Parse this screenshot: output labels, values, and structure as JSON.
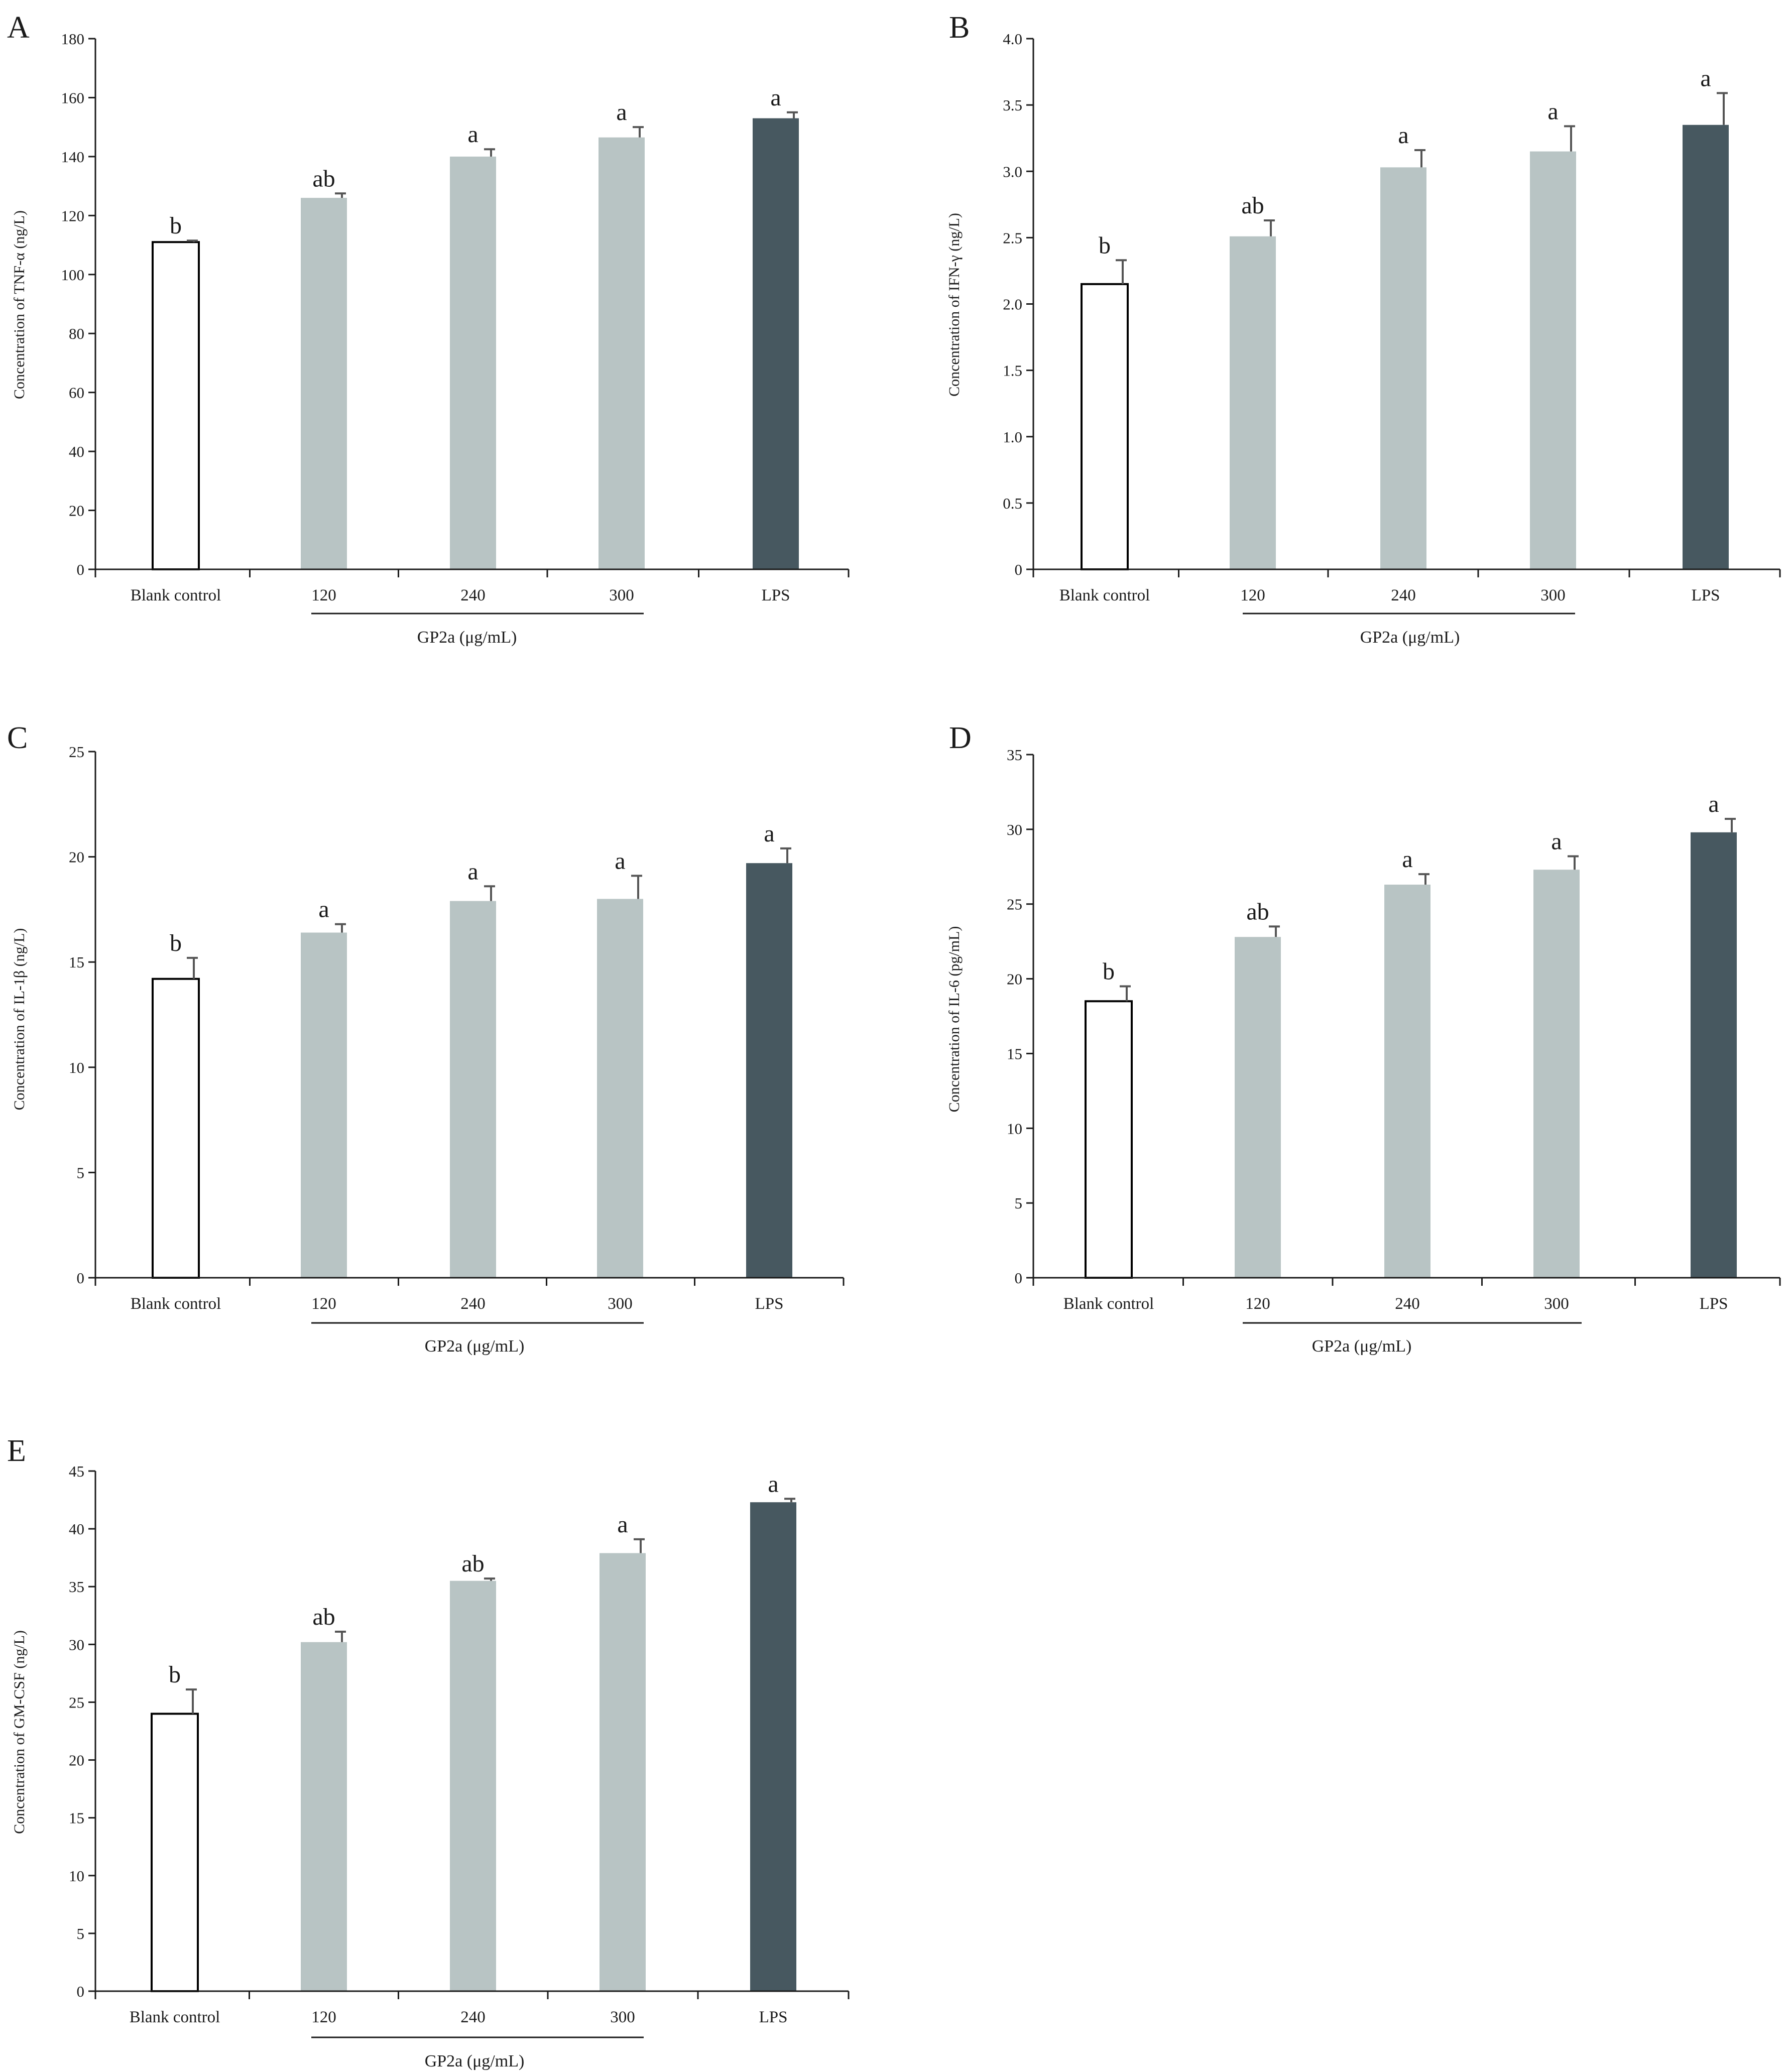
{
  "group_label": "GP2a (μg/mL)",
  "colors": {
    "blank_fill": "#ffffff",
    "blank_stroke": "#000000",
    "gp2a": "#b8c4c4",
    "lps": "#475860",
    "axis": "#1a1a1a",
    "error": "#555555"
  },
  "chart_data": [
    {
      "panel": "A",
      "type": "bar",
      "ylabel": "Concentration of TNF-α (ng/L)",
      "categories": [
        "Blank control",
        "120",
        "240",
        "300",
        "LPS"
      ],
      "values": [
        111,
        126,
        140,
        146.5,
        153
      ],
      "errors": [
        0.5,
        1.5,
        2.5,
        3.5,
        2
      ],
      "letters": [
        "b",
        "ab",
        "a",
        "a",
        "a"
      ],
      "ylim": [
        0,
        180
      ],
      "yticks": [
        0,
        20,
        40,
        60,
        80,
        100,
        120,
        140,
        160,
        180
      ]
    },
    {
      "panel": "B",
      "type": "bar",
      "ylabel": "Concentration of IFN-γ (ng/L)",
      "categories": [
        "Blank control",
        "120",
        "240",
        "300",
        "LPS"
      ],
      "values": [
        2.15,
        2.51,
        3.03,
        3.15,
        3.35
      ],
      "errors": [
        0.18,
        0.12,
        0.13,
        0.19,
        0.24
      ],
      "letters": [
        "b",
        "ab",
        "a",
        "a",
        "a"
      ],
      "ylim": [
        0,
        4.0
      ],
      "yticks": [
        "0",
        "0.5",
        "1.0",
        "1.5",
        "2.0",
        "2.5",
        "3.0",
        "3.5",
        "4.0"
      ]
    },
    {
      "panel": "C",
      "type": "bar",
      "ylabel": "Concentration of IL-1β (ng/L)",
      "categories": [
        "Blank control",
        "120",
        "240",
        "300",
        "LPS"
      ],
      "values": [
        14.2,
        16.4,
        17.9,
        18.0,
        19.7
      ],
      "errors": [
        1.0,
        0.4,
        0.7,
        1.1,
        0.7
      ],
      "letters": [
        "b",
        "a",
        "a",
        "a",
        "a"
      ],
      "ylim": [
        0,
        25
      ],
      "yticks": [
        0,
        5,
        10,
        15,
        20,
        25
      ]
    },
    {
      "panel": "D",
      "type": "bar",
      "ylabel": "Concentration of IL-6 (pg/mL)",
      "categories": [
        "Blank control",
        "120",
        "240",
        "300",
        "LPS"
      ],
      "values": [
        18.5,
        22.8,
        26.3,
        27.3,
        29.8
      ],
      "errors": [
        1.0,
        0.7,
        0.7,
        0.9,
        0.9
      ],
      "letters": [
        "b",
        "ab",
        "a",
        "a",
        "a"
      ],
      "ylim": [
        0,
        35
      ],
      "yticks": [
        0,
        5,
        10,
        15,
        20,
        25,
        30,
        35
      ]
    },
    {
      "panel": "E",
      "type": "bar",
      "ylabel": "Concentration of GM-CSF (ng/L)",
      "categories": [
        "Blank control",
        "120",
        "240",
        "300",
        "LPS"
      ],
      "values": [
        24.0,
        30.2,
        35.5,
        37.9,
        42.3
      ],
      "errors": [
        2.1,
        0.9,
        0.2,
        1.2,
        0.3
      ],
      "letters": [
        "b",
        "ab",
        "ab",
        "a",
        "a"
      ],
      "ylim": [
        0,
        45
      ],
      "yticks": [
        0,
        5,
        10,
        15,
        20,
        25,
        30,
        35,
        40,
        45
      ]
    }
  ]
}
